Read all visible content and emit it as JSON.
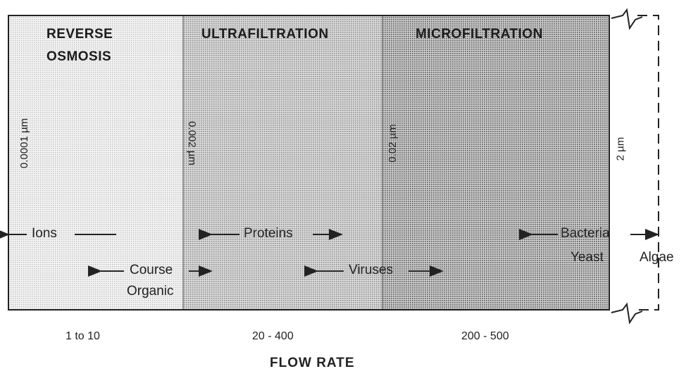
{
  "regions": [
    {
      "id": "ro",
      "title_lines": [
        "REVERSE",
        "OSMOSIS"
      ],
      "pore_size": "0.0001 µm",
      "flow_rate": "1 to 10",
      "shade": "light"
    },
    {
      "id": "uf",
      "title_lines": [
        "ULTRAFILTRATION"
      ],
      "pore_size": "0.002 µm",
      "flow_rate": "20 - 400",
      "shade": "medium"
    },
    {
      "id": "mf",
      "title_lines": [
        "MICROFILTRATION"
      ],
      "pore_size": "0.02 µm",
      "flow_rate": "200 - 500",
      "shade": "dark"
    }
  ],
  "outer_pore_size": "2 µm",
  "axis_title": "FLOW RATE",
  "species": {
    "ions": "Ions",
    "course_organic": [
      "Course",
      "Organic"
    ],
    "proteins": "Proteins",
    "viruses": "Viruses",
    "bacteria_yeast": [
      "Bacteria",
      "Yeast"
    ],
    "algae": "Algae"
  },
  "colors": {
    "light_dot": "#bdbdbd",
    "medium_dot": "#8c8c8c",
    "dark_dot": "#6e6e6e",
    "border": "#222222"
  }
}
